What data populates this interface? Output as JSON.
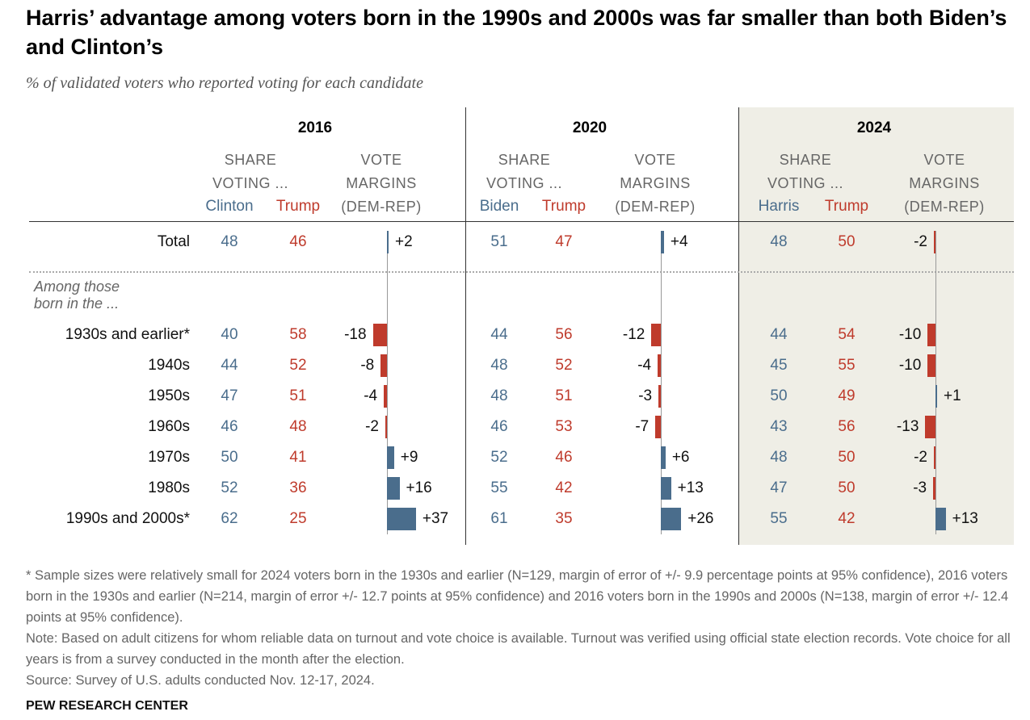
{
  "chart_data": {
    "type": "table",
    "title": "Harris’ advantage among voters born in the 1990s and 2000s was far smaller than both Biden’s and Clinton’s",
    "subtitle": "% of validated voters who reported voting for each candidate",
    "share_header": [
      "SHARE",
      "VOTING ..."
    ],
    "margin_header": [
      "VOTE",
      "MARGINS",
      "(DEM-REP)"
    ],
    "among_label": [
      "Among those",
      "born in the ..."
    ],
    "rows": [
      "Total",
      "1930s and earlier*",
      "1940s",
      "1950s",
      "1960s",
      "1970s",
      "1980s",
      "1990s and 2000s*"
    ],
    "years": [
      {
        "year": "2016",
        "dem": "Clinton",
        "rep": "Trump",
        "dem_values": [
          48,
          40,
          44,
          47,
          46,
          50,
          52,
          62
        ],
        "rep_values": [
          46,
          58,
          52,
          51,
          48,
          41,
          36,
          25
        ],
        "margins": [
          2,
          -18,
          -8,
          -4,
          -2,
          9,
          16,
          37
        ],
        "margin_labels": [
          "+2",
          "-18",
          "-8",
          "-4",
          "-2",
          "+9",
          "+16",
          "+37"
        ]
      },
      {
        "year": "2020",
        "dem": "Biden",
        "rep": "Trump",
        "dem_values": [
          51,
          44,
          48,
          48,
          46,
          52,
          55,
          61
        ],
        "rep_values": [
          47,
          56,
          52,
          51,
          53,
          46,
          42,
          35
        ],
        "margins": [
          4,
          -12,
          -4,
          -3,
          -7,
          6,
          13,
          26
        ],
        "margin_labels": [
          "+4",
          "-12",
          "-4",
          "-3",
          "-7",
          "+6",
          "+13",
          "+26"
        ]
      },
      {
        "year": "2024",
        "dem": "Harris",
        "rep": "Trump",
        "dem_values": [
          48,
          44,
          45,
          50,
          43,
          48,
          47,
          55
        ],
        "rep_values": [
          50,
          54,
          55,
          49,
          56,
          50,
          50,
          42
        ],
        "margins": [
          -2,
          -10,
          -10,
          1,
          -13,
          -2,
          -3,
          13
        ],
        "margin_labels": [
          "-2",
          "-10",
          "-10",
          "+1",
          "-13",
          "-2",
          "-3",
          "+13"
        ]
      }
    ],
    "colors": {
      "dem": "#4a6d8c",
      "rep": "#bf3b2c",
      "highlight": "#efeee6"
    }
  },
  "footnotes": [
    "* Sample sizes were relatively small for 2024 voters born in the 1930s and earlier (N=129, margin of error of +/- 9.9 percentage points at 95% confidence), 2016 voters born in the 1930s and earlier (N=214, margin of error +/- 12.7 points at 95% confidence) and 2016 voters born in the 1990s and 2000s (N=138, margin of error +/- 12.4 points at 95% confidence).",
    "Note: Based on adult citizens for whom reliable data on turnout and vote choice is available. Turnout was verified using official state election records. Vote choice for all years is from a survey conducted in the month after the election.",
    "Source: Survey of U.S. adults conducted Nov. 12-17, 2024."
  ],
  "brand": "PEW RESEARCH CENTER"
}
